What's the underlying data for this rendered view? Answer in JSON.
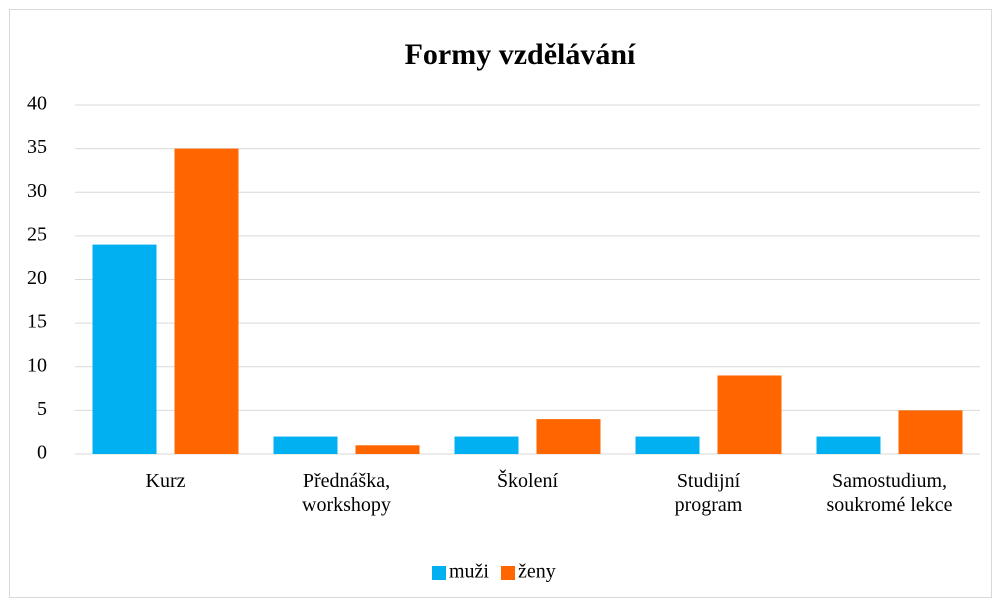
{
  "chart_data": {
    "type": "bar",
    "title": "Formy vzdělávání",
    "categories": [
      "Kurz",
      "Přednáška,\nworkshopy",
      "Školení",
      "Studijní\nprogram",
      "Samostudium,\nsoukromé lekce"
    ],
    "series": [
      {
        "name": "muži",
        "color": "#00b0f0",
        "values": [
          24,
          2,
          2,
          2,
          2
        ]
      },
      {
        "name": "ženy",
        "color": "#ff6600",
        "values": [
          35,
          1,
          4,
          9,
          5
        ]
      }
    ],
    "ylim": [
      0,
      40
    ],
    "yticks": [
      0,
      5,
      10,
      15,
      20,
      25,
      30,
      35,
      40
    ],
    "grid": true,
    "legend": "bottom"
  }
}
